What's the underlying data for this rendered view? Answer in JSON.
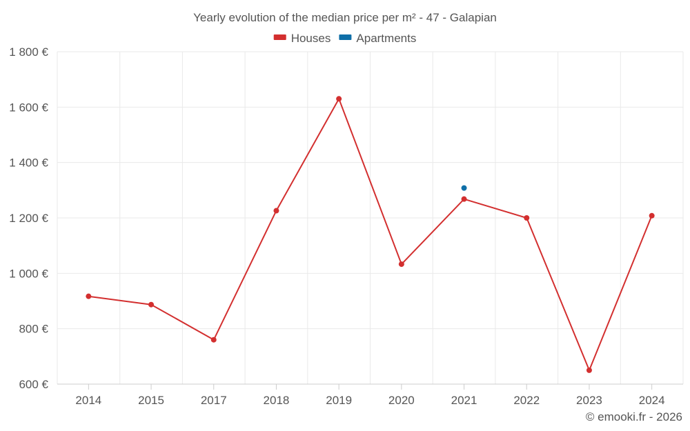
{
  "chart_data": {
    "type": "line",
    "title": "Yearly evolution of the median price per m² - 47 - Galapian",
    "categories": [
      "2014",
      "2015",
      "2017",
      "2018",
      "2019",
      "2020",
      "2021",
      "2022",
      "2023",
      "2024"
    ],
    "series": [
      {
        "name": "Houses",
        "color": "#d32f2f",
        "values": [
          917,
          887,
          760,
          1226,
          1630,
          1033,
          1268,
          1200,
          650,
          1208
        ]
      },
      {
        "name": "Apartments",
        "color": "#0f6fa8",
        "values": [
          null,
          null,
          null,
          null,
          null,
          null,
          1308,
          null,
          null,
          null
        ]
      }
    ],
    "y_ticks": [
      600,
      800,
      1000,
      1200,
      1400,
      1600,
      1800
    ],
    "y_tick_labels": [
      "600 €",
      "800 €",
      "1 000 €",
      "1 200 €",
      "1 400 €",
      "1 600 €",
      "1 800 €"
    ],
    "ylim": [
      600,
      1800
    ],
    "xlabel": "",
    "ylabel": "",
    "grid": true,
    "legend_position": "top-center",
    "credit": "© emooki.fr - 2026"
  }
}
